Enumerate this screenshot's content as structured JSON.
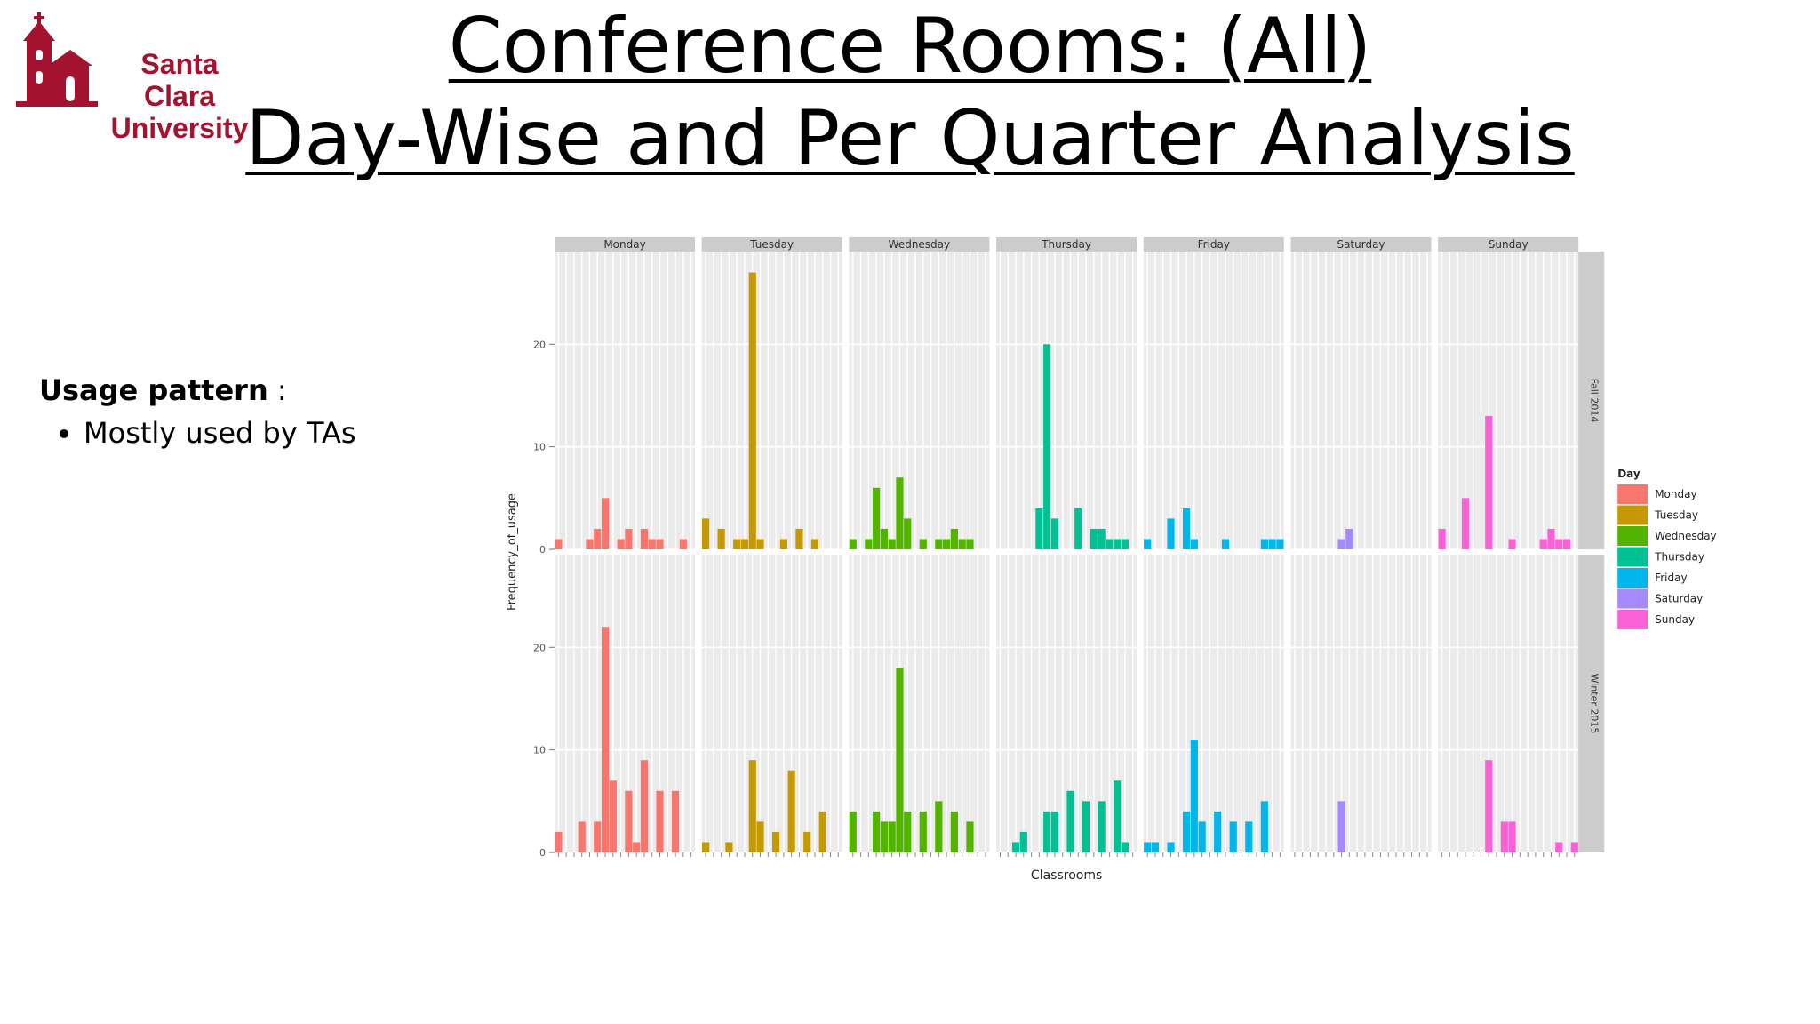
{
  "logo": {
    "line1": "Santa Clara",
    "line2": "University",
    "brand_color": "#a3122e"
  },
  "title": {
    "line1": "Conference Rooms: (All)",
    "line2": "Day-Wise and Per Quarter Analysis"
  },
  "notes": {
    "heading": "Usage pattern",
    "heading_suffix": " :",
    "bullets": [
      "Mostly used by TAs"
    ]
  },
  "chart_data": {
    "type": "bar",
    "xlabel": "Classrooms",
    "ylabel": "Frequency_of_usage",
    "ylim": [
      0,
      28
    ],
    "yticks": [
      0,
      10,
      20
    ],
    "grid": true,
    "legend_placement": "right",
    "legend_title": "Day",
    "facet_columns": [
      "Monday",
      "Tuesday",
      "Wednesday",
      "Thursday",
      "Friday",
      "Saturday",
      "Sunday"
    ],
    "facet_rows": [
      "Fall 2014",
      "Winter 2015"
    ],
    "colors": {
      "Monday": "#f8766d",
      "Tuesday": "#c49a00",
      "Wednesday": "#53b400",
      "Thursday": "#00c094",
      "Friday": "#00b6eb",
      "Saturday": "#a58aff",
      "Sunday": "#fb61d7"
    },
    "classroom_count": 18,
    "panels": [
      {
        "row": "Fall 2014",
        "day": "Monday",
        "values": [
          1,
          0,
          0,
          0,
          1,
          2,
          5,
          0,
          1,
          2,
          0,
          2,
          1,
          1,
          0,
          0,
          1,
          0
        ]
      },
      {
        "row": "Fall 2014",
        "day": "Tuesday",
        "values": [
          3,
          0,
          2,
          0,
          1,
          1,
          27,
          1,
          0,
          0,
          1,
          0,
          2,
          0,
          1,
          0,
          0,
          0
        ]
      },
      {
        "row": "Fall 2014",
        "day": "Wednesday",
        "values": [
          1,
          0,
          1,
          6,
          2,
          1,
          7,
          3,
          0,
          1,
          0,
          1,
          1,
          2,
          1,
          1,
          0,
          0
        ]
      },
      {
        "row": "Fall 2014",
        "day": "Thursday",
        "values": [
          0,
          0,
          0,
          0,
          0,
          4,
          20,
          3,
          0,
          0,
          4,
          0,
          2,
          2,
          1,
          1,
          1,
          0
        ]
      },
      {
        "row": "Fall 2014",
        "day": "Friday",
        "values": [
          1,
          0,
          0,
          3,
          0,
          4,
          1,
          0,
          0,
          0,
          1,
          0,
          0,
          0,
          0,
          1,
          1,
          1
        ]
      },
      {
        "row": "Fall 2014",
        "day": "Saturday",
        "values": [
          0,
          0,
          0,
          0,
          0,
          0,
          1,
          2,
          0,
          0,
          0,
          0,
          0,
          0,
          0,
          0,
          0,
          0
        ]
      },
      {
        "row": "Fall 2014",
        "day": "Sunday",
        "values": [
          2,
          0,
          0,
          5,
          0,
          0,
          13,
          0,
          0,
          1,
          0,
          0,
          0,
          1,
          2,
          1,
          1,
          0
        ]
      },
      {
        "row": "Winter 2015",
        "day": "Monday",
        "values": [
          2,
          0,
          0,
          3,
          0,
          3,
          22,
          7,
          0,
          6,
          1,
          9,
          0,
          6,
          0,
          6,
          0,
          0
        ]
      },
      {
        "row": "Winter 2015",
        "day": "Tuesday",
        "values": [
          1,
          0,
          0,
          1,
          0,
          0,
          9,
          3,
          0,
          2,
          0,
          8,
          0,
          2,
          0,
          4,
          0,
          0
        ]
      },
      {
        "row": "Winter 2015",
        "day": "Wednesday",
        "values": [
          4,
          0,
          0,
          4,
          3,
          3,
          18,
          4,
          0,
          4,
          0,
          5,
          0,
          4,
          0,
          3,
          0,
          0
        ]
      },
      {
        "row": "Winter 2015",
        "day": "Thursday",
        "values": [
          0,
          0,
          1,
          2,
          0,
          0,
          4,
          4,
          0,
          6,
          0,
          5,
          0,
          5,
          0,
          7,
          1,
          0
        ]
      },
      {
        "row": "Winter 2015",
        "day": "Friday",
        "values": [
          1,
          1,
          0,
          1,
          0,
          4,
          11,
          3,
          0,
          4,
          0,
          3,
          0,
          3,
          0,
          5,
          0,
          0
        ]
      },
      {
        "row": "Winter 2015",
        "day": "Saturday",
        "values": [
          0,
          0,
          0,
          0,
          0,
          0,
          5,
          0,
          0,
          0,
          0,
          0,
          0,
          0,
          0,
          0,
          0,
          0
        ]
      },
      {
        "row": "Winter 2015",
        "day": "Sunday",
        "values": [
          0,
          0,
          0,
          0,
          0,
          0,
          9,
          0,
          3,
          3,
          0,
          0,
          0,
          0,
          0,
          1,
          0,
          1
        ]
      }
    ]
  }
}
